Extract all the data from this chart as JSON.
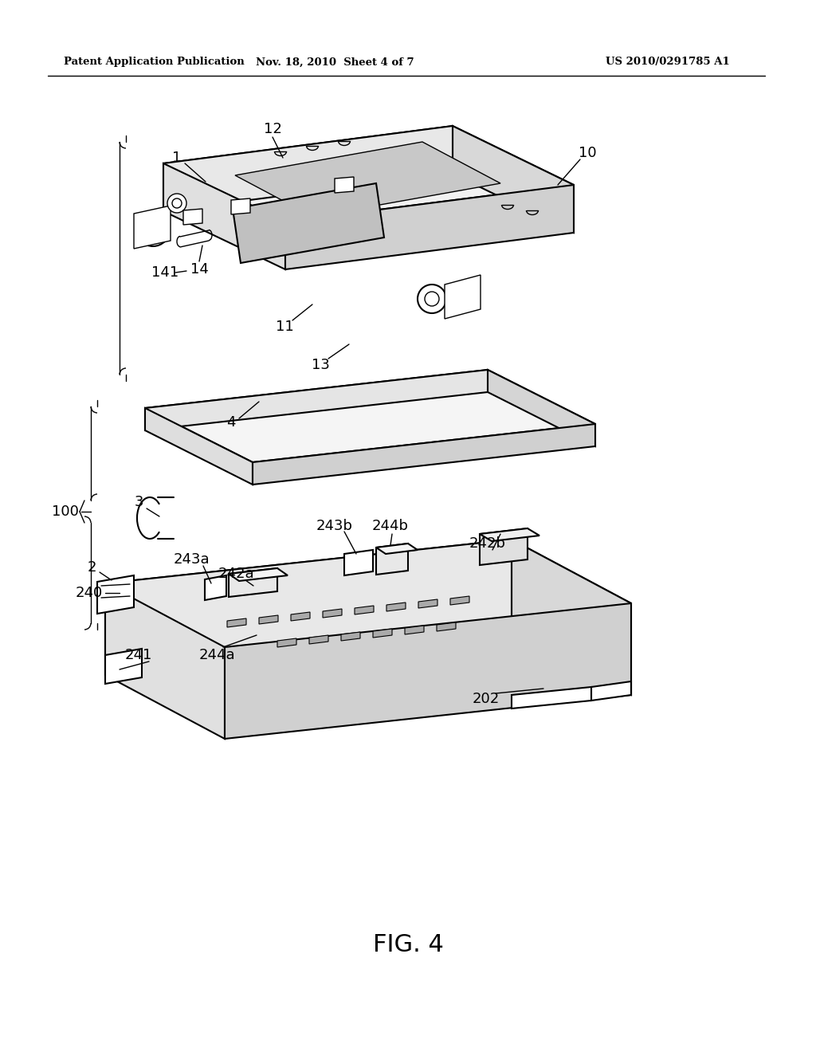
{
  "background_color": "#ffffff",
  "header_left": "Patent Application Publication",
  "header_mid": "Nov. 18, 2010  Sheet 4 of 7",
  "header_right": "US 2010/0291785 A1",
  "figure_label": "FIG. 4"
}
